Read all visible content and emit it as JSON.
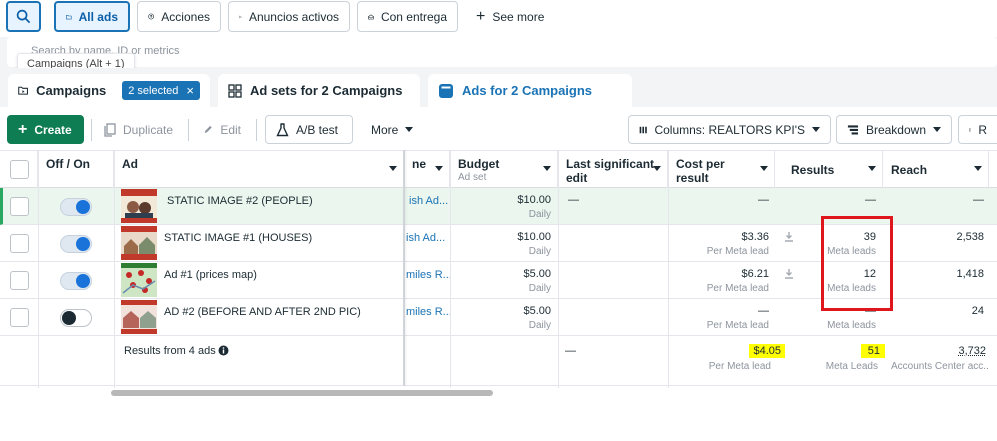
{
  "filterbar": {
    "search_icon": "search-icon",
    "items": [
      {
        "label": "All ads",
        "icon": "folder-icon",
        "selected": true
      },
      {
        "label": "Acciones",
        "icon": "arrow-up-circle-icon"
      },
      {
        "label": "Anuncios activos",
        "icon": "play-triangle-icon"
      },
      {
        "label": "Con entrega",
        "icon": "envelope-icon"
      }
    ],
    "see_more": "See more"
  },
  "search": {
    "placeholder": "Search by name, ID or metrics",
    "tooltip": "Campaigns (Alt + 1)"
  },
  "tabs": {
    "campaigns": "Campaigns",
    "selected_pill": "2 selected",
    "ad_sets": "Ad sets for 2 Campaigns",
    "ads": "Ads for 2 Campaigns"
  },
  "toolbar": {
    "create": "Create",
    "duplicate": "Duplicate",
    "edit": "Edit",
    "ab_test": "A/B test",
    "more": "More",
    "columns": "Columns: REALTORS KPI'S",
    "breakdown": "Breakdown",
    "reports": "R"
  },
  "table": {
    "headers": {
      "off_on": "Off / On",
      "ad": "Ad",
      "name_partial": "ne",
      "budget": "Budget",
      "budget_sub": "Ad set",
      "last_edit_1": "Last significant",
      "last_edit_2": "edit",
      "cost_1": "Cost per",
      "cost_2": "result",
      "results": "Results",
      "reach": "Reach"
    },
    "rows": [
      {
        "name": "STATIC IMAGE #2 (PEOPLE)",
        "toggle": "on",
        "adset": "ish Ad...",
        "budget": "$10.00",
        "budget_sub": "Daily",
        "last_edit": "—",
        "cost": "—",
        "cost_sub": "",
        "results": "—",
        "results_sub": "",
        "reach": "—"
      },
      {
        "name": "STATIC IMAGE #1 (HOUSES)",
        "toggle": "on",
        "adset": "ish Ad...",
        "budget": "$10.00",
        "budget_sub": "Daily",
        "last_edit": "",
        "cost": "$3.36",
        "cost_sub": "Per Meta lead",
        "results": "39",
        "results_sub": "Meta leads",
        "reach": "2,538"
      },
      {
        "name": "Ad #1 (prices map)",
        "toggle": "on",
        "adset": "miles R...",
        "budget": "$5.00",
        "budget_sub": "Daily",
        "last_edit": "",
        "cost": "$6.21",
        "cost_sub": "Per Meta lead",
        "results": "12",
        "results_sub": "Meta leads",
        "reach": "1,418"
      },
      {
        "name": "AD #2 (BEFORE AND AFTER 2ND PIC)",
        "toggle": "off",
        "adset": "miles R...",
        "budget": "$5.00",
        "budget_sub": "Daily",
        "last_edit": "",
        "cost": "—",
        "cost_sub": "Per Meta lead",
        "results": "—",
        "results_sub": "Meta leads",
        "reach": "24"
      }
    ],
    "summary": {
      "label": "Results from 4 ads",
      "last_edit": "—",
      "cost": "$4.05",
      "cost_sub": "Per Meta lead",
      "results": "51",
      "results_sub": "Meta Leads",
      "reach": "3,732",
      "reach_sub": "Accounts Center acc..."
    }
  },
  "colors": {
    "accent": "#1a73b5",
    "create": "#0f7d53",
    "highlight": "#ffff00",
    "annotation": "#e0161d"
  }
}
